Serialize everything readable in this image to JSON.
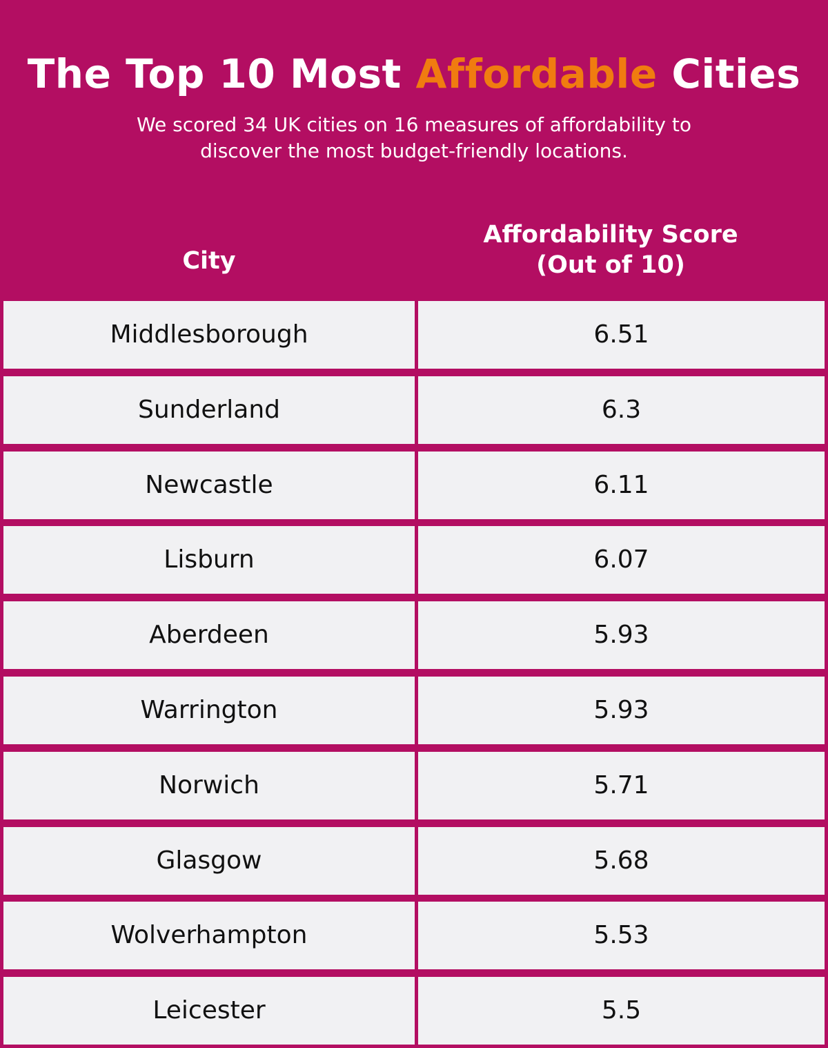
{
  "header": {
    "title_before": "The Top 10 Most ",
    "title_highlight": "Affordable",
    "title_after": " Cities",
    "subtitle": "We scored 34 UK cities on 16 measures of affordability to discover the most budget-friendly locations."
  },
  "colors": {
    "background": "#b30e62",
    "highlight": "#f07c10",
    "cell_background": "#f1f1f3",
    "cell_text": "#111111"
  },
  "chart_data": {
    "type": "table",
    "title": "The Top 10 Most Affordable Cities",
    "subtitle": "We scored 34 UK cities on 16 measures of affordability to discover the most budget-friendly locations.",
    "columns": [
      "City",
      "Affordability Score (Out of 10)"
    ],
    "column_headers": {
      "city": "City",
      "score_line1": "Affordability Score",
      "score_line2": "(Out of 10)"
    },
    "rows": [
      {
        "city": "Middlesborough",
        "score": "6.51"
      },
      {
        "city": "Sunderland",
        "score": "6.3"
      },
      {
        "city": "Newcastle",
        "score": "6.11"
      },
      {
        "city": "Lisburn",
        "score": "6.07"
      },
      {
        "city": "Aberdeen",
        "score": "5.93"
      },
      {
        "city": "Warrington",
        "score": "5.93"
      },
      {
        "city": "Norwich",
        "score": "5.71"
      },
      {
        "city": "Glasgow",
        "score": "5.68"
      },
      {
        "city": "Wolverhampton",
        "score": "5.53"
      },
      {
        "city": "Leicester",
        "score": "5.5"
      }
    ]
  }
}
